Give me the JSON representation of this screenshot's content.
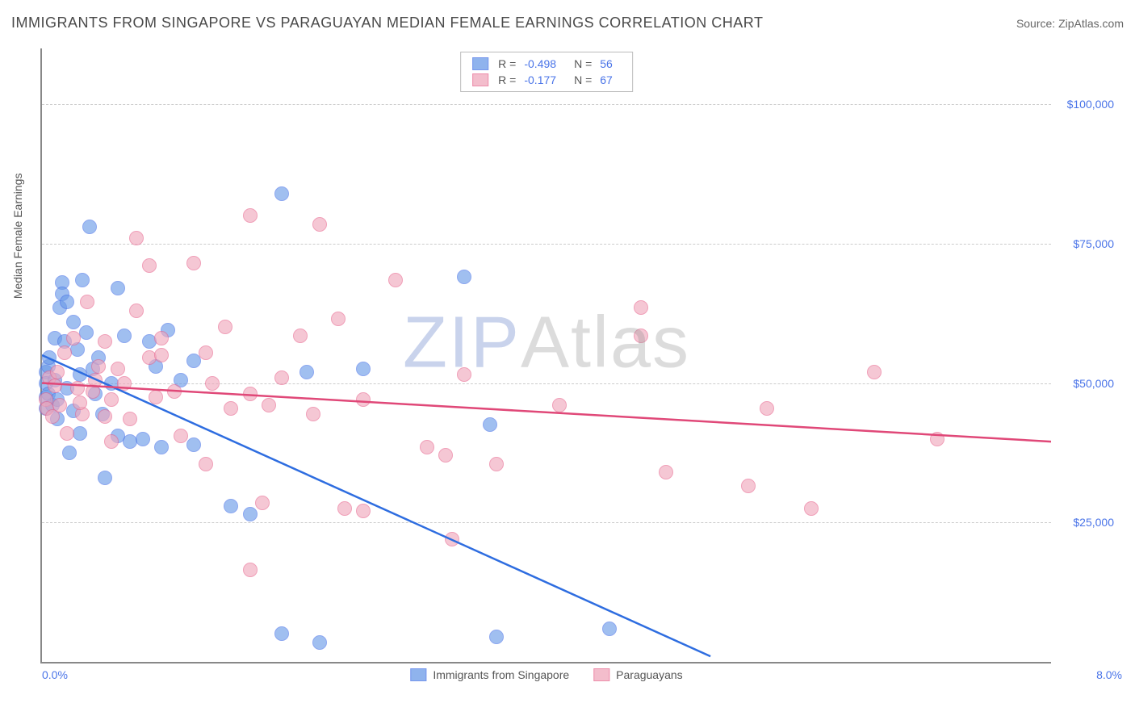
{
  "title": "IMMIGRANTS FROM SINGAPORE VS PARAGUAYAN MEDIAN FEMALE EARNINGS CORRELATION CHART",
  "source_label": "Source: ",
  "source_value": "ZipAtlas.com",
  "watermark_z": "ZIP",
  "watermark_rest": "Atlas",
  "chart": {
    "type": "scatter",
    "y_axis_title": "Median Female Earnings",
    "xlim": [
      0,
      8
    ],
    "ylim": [
      0,
      110000
    ],
    "x_tick_labels": [
      "0.0%",
      "8.0%"
    ],
    "y_ticks": [
      25000,
      50000,
      75000,
      100000
    ],
    "y_tick_labels": [
      "$25,000",
      "$50,000",
      "$75,000",
      "$100,000"
    ],
    "background_color": "#ffffff",
    "grid_color": "#cccccc",
    "axis_color": "#888888",
    "tick_label_color": "#4a74e8",
    "point_radius": 8,
    "point_stroke_width": 1.3,
    "point_fill_opacity": 0.28,
    "series": [
      {
        "id": "singapore",
        "label": "Immigrants from Singapore",
        "color": "#6a9ae8",
        "stroke": "#4a74e8",
        "R": "-0.498",
        "N": "56",
        "trend": {
          "x1": 0,
          "y1": 55000,
          "x2": 5.3,
          "y2": 1000,
          "color": "#2e6de0",
          "width": 2.5
        },
        "points": [
          [
            0.03,
            52000
          ],
          [
            0.03,
            50000
          ],
          [
            0.03,
            47500
          ],
          [
            0.03,
            45500
          ],
          [
            0.05,
            53000
          ],
          [
            0.05,
            48000
          ],
          [
            0.06,
            54500
          ],
          [
            0.08,
            46000
          ],
          [
            0.1,
            58000
          ],
          [
            0.1,
            50500
          ],
          [
            0.12,
            47000
          ],
          [
            0.12,
            43500
          ],
          [
            0.14,
            63500
          ],
          [
            0.16,
            68000
          ],
          [
            0.16,
            66000
          ],
          [
            0.18,
            57500
          ],
          [
            0.2,
            64500
          ],
          [
            0.22,
            37500
          ],
          [
            0.25,
            61000
          ],
          [
            0.28,
            56000
          ],
          [
            0.3,
            41000
          ],
          [
            0.32,
            68500
          ],
          [
            0.35,
            59000
          ],
          [
            0.38,
            78000
          ],
          [
            0.4,
            52500
          ],
          [
            0.45,
            54500
          ],
          [
            0.48,
            44500
          ],
          [
            0.5,
            33000
          ],
          [
            0.55,
            50000
          ],
          [
            0.6,
            67000
          ],
          [
            0.65,
            58500
          ],
          [
            0.7,
            39500
          ],
          [
            0.8,
            40000
          ],
          [
            0.85,
            57500
          ],
          [
            0.9,
            53000
          ],
          [
            0.95,
            38500
          ],
          [
            1.0,
            59500
          ],
          [
            1.1,
            50500
          ],
          [
            1.2,
            54000
          ],
          [
            1.2,
            39000
          ],
          [
            1.5,
            28000
          ],
          [
            1.65,
            26500
          ],
          [
            1.9,
            5000
          ],
          [
            1.9,
            84000
          ],
          [
            2.1,
            52000
          ],
          [
            2.2,
            3500
          ],
          [
            2.55,
            52500
          ],
          [
            3.35,
            69000
          ],
          [
            3.55,
            42500
          ],
          [
            3.6,
            4500
          ],
          [
            4.5,
            6000
          ],
          [
            0.2,
            49000
          ],
          [
            0.25,
            45000
          ],
          [
            0.3,
            51500
          ],
          [
            0.42,
            48000
          ],
          [
            0.6,
            40500
          ]
        ]
      },
      {
        "id": "paraguayans",
        "label": "Paraguayans",
        "color": "#f0a8bc",
        "stroke": "#e86890",
        "R": "-0.177",
        "N": "67",
        "trend": {
          "x1": 0,
          "y1": 50000,
          "x2": 8,
          "y2": 39500,
          "color": "#e04878",
          "width": 2.5
        },
        "points": [
          [
            0.03,
            47000
          ],
          [
            0.04,
            45500
          ],
          [
            0.06,
            51000
          ],
          [
            0.08,
            44000
          ],
          [
            0.1,
            49500
          ],
          [
            0.12,
            52000
          ],
          [
            0.14,
            46000
          ],
          [
            0.18,
            55500
          ],
          [
            0.2,
            41000
          ],
          [
            0.25,
            58000
          ],
          [
            0.28,
            49000
          ],
          [
            0.32,
            44500
          ],
          [
            0.36,
            64500
          ],
          [
            0.4,
            48500
          ],
          [
            0.45,
            53000
          ],
          [
            0.5,
            57500
          ],
          [
            0.55,
            47000
          ],
          [
            0.55,
            39500
          ],
          [
            0.6,
            52500
          ],
          [
            0.65,
            50000
          ],
          [
            0.7,
            43500
          ],
          [
            0.75,
            63000
          ],
          [
            0.75,
            76000
          ],
          [
            0.85,
            71000
          ],
          [
            0.85,
            54500
          ],
          [
            0.9,
            47500
          ],
          [
            0.95,
            58000
          ],
          [
            1.05,
            48500
          ],
          [
            1.1,
            40500
          ],
          [
            1.2,
            71500
          ],
          [
            1.3,
            55500
          ],
          [
            1.3,
            35500
          ],
          [
            1.35,
            50000
          ],
          [
            1.45,
            60000
          ],
          [
            1.5,
            45500
          ],
          [
            1.65,
            80000
          ],
          [
            1.65,
            48000
          ],
          [
            1.65,
            16500
          ],
          [
            1.75,
            28500
          ],
          [
            1.9,
            51000
          ],
          [
            2.05,
            58500
          ],
          [
            2.15,
            44500
          ],
          [
            2.2,
            78500
          ],
          [
            2.35,
            61500
          ],
          [
            2.4,
            27500
          ],
          [
            2.55,
            47000
          ],
          [
            2.55,
            27000
          ],
          [
            2.8,
            68500
          ],
          [
            3.05,
            38500
          ],
          [
            3.2,
            37000
          ],
          [
            3.25,
            22000
          ],
          [
            3.35,
            51500
          ],
          [
            3.6,
            35500
          ],
          [
            4.1,
            46000
          ],
          [
            4.75,
            58500
          ],
          [
            4.75,
            63500
          ],
          [
            4.95,
            34000
          ],
          [
            5.6,
            31500
          ],
          [
            5.75,
            45500
          ],
          [
            6.1,
            27500
          ],
          [
            6.6,
            52000
          ],
          [
            7.1,
            40000
          ],
          [
            0.3,
            46500
          ],
          [
            0.42,
            50500
          ],
          [
            0.5,
            44000
          ],
          [
            0.95,
            55000
          ],
          [
            1.8,
            46000
          ]
        ]
      }
    ]
  }
}
